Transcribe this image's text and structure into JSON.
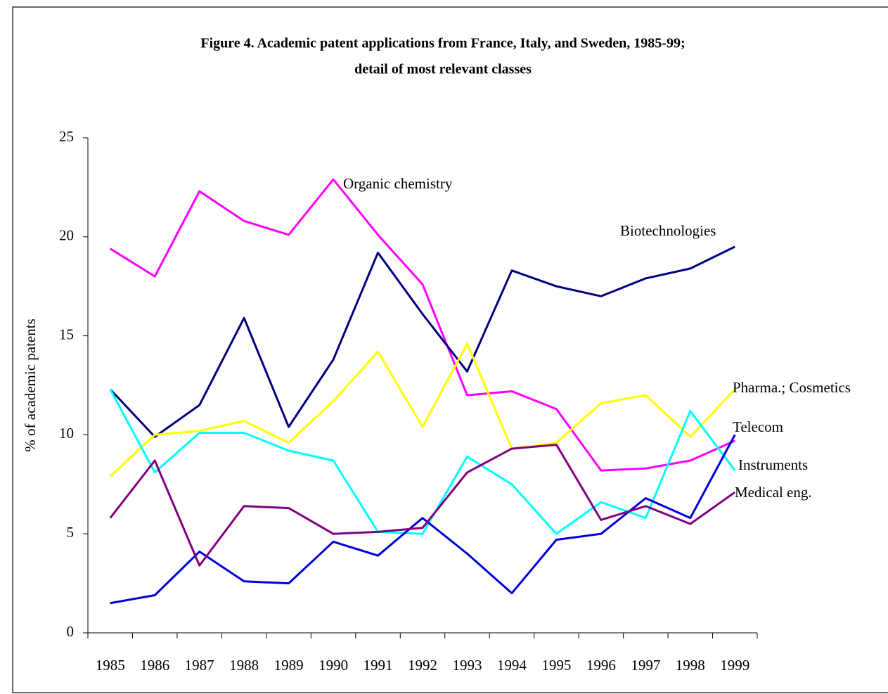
{
  "chart_data": {
    "type": "line",
    "title": "Figure 4. Academic patent applications from France, Italy, and Sweden, 1985-99;",
    "subtitle": "detail of most relevant classes",
    "y_label": "% of academic patents",
    "categories": [
      "1985",
      "1986",
      "1987",
      "1988",
      "1989",
      "1990",
      "1991",
      "1992",
      "1993",
      "1994",
      "1995",
      "1996",
      "1997",
      "1998",
      "1999"
    ],
    "ylim": [
      0,
      25
    ],
    "yticks": [
      0,
      5,
      10,
      15,
      20,
      25
    ],
    "grid": false,
    "series": [
      {
        "name": "Organic chemistry",
        "color": "#ff00ff",
        "values": [
          19.4,
          18.0,
          22.3,
          20.8,
          20.1,
          22.9,
          20.1,
          17.6,
          12.0,
          12.2,
          11.3,
          8.2,
          8.3,
          8.7,
          9.7
        ]
      },
      {
        "name": "Biotechnologies",
        "color": "#000080",
        "values": [
          12.3,
          9.9,
          11.5,
          15.9,
          10.4,
          13.8,
          19.2,
          16.1,
          13.2,
          18.3,
          17.5,
          17.0,
          17.9,
          18.4,
          19.5
        ]
      },
      {
        "name": "Pharma.; Cosmetics",
        "color": "#ffff00",
        "values": [
          7.9,
          10.0,
          10.2,
          10.7,
          9.6,
          11.7,
          14.2,
          10.4,
          14.6,
          9.3,
          9.6,
          11.6,
          12.0,
          9.9,
          12.3
        ]
      },
      {
        "name": "Instruments",
        "color": "#00ffff",
        "values": [
          12.3,
          8.1,
          10.1,
          10.1,
          9.2,
          8.7,
          5.1,
          5.0,
          8.9,
          7.5,
          5.0,
          6.6,
          5.8,
          11.2,
          8.2
        ]
      },
      {
        "name": "Telecom",
        "color": "#0000dd",
        "values": [
          1.5,
          1.9,
          4.1,
          2.6,
          2.5,
          4.6,
          3.9,
          5.8,
          4.0,
          2.0,
          4.7,
          5.0,
          6.8,
          5.8,
          10.0
        ]
      },
      {
        "name": "Medical eng.",
        "color": "#800080",
        "values": [
          5.8,
          8.7,
          3.4,
          6.4,
          6.3,
          5.0,
          5.1,
          5.3,
          8.1,
          9.3,
          9.5,
          5.7,
          6.4,
          5.5,
          7.1
        ]
      }
    ]
  }
}
